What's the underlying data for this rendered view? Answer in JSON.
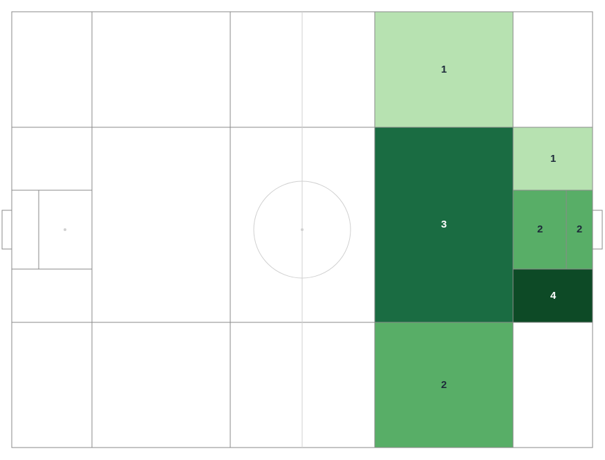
{
  "chart_data": {
    "type": "heatmap",
    "title": "",
    "colorscale": [
      "#b7e2b1",
      "#58ae67",
      "#1a6c42",
      "#0d4a26"
    ],
    "label_colors": {
      "light": "#1d2a3a",
      "dark": "#ffffff"
    },
    "line_color": "#9a9a9a",
    "zones": [
      {
        "zone": "right-half-wide-top",
        "value": 1
      },
      {
        "zone": "right-half-central",
        "value": 3
      },
      {
        "zone": "right-half-wide-bottom",
        "value": 2
      },
      {
        "zone": "penalty-area-top-channel",
        "value": 1
      },
      {
        "zone": "penalty-area-centre",
        "value": 2
      },
      {
        "zone": "six-yard-box",
        "value": 2
      },
      {
        "zone": "penalty-area-bottom-channel",
        "value": 4
      }
    ]
  }
}
